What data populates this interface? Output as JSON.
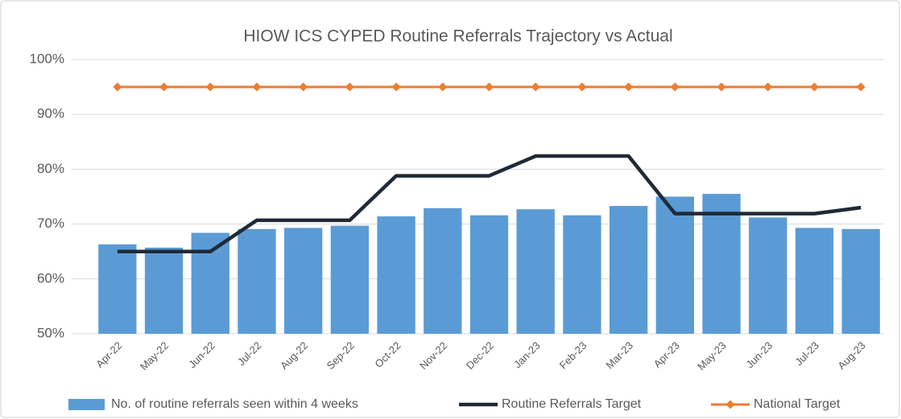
{
  "chart_data": {
    "type": "bar",
    "title": "HIOW ICS CYPED Routine Referrals Trajectory vs Actual",
    "categories": [
      "Apr-22",
      "May-22",
      "Jun-22",
      "Jul-22",
      "Aug-22",
      "Sep-22",
      "Oct-22",
      "Nov-22",
      "Dec-22",
      "Jan-23",
      "Feb-23",
      "Mar-23",
      "Apr-23",
      "May-23",
      "Jun-23",
      "Jul-23",
      "Aug-23"
    ],
    "series": [
      {
        "name": "No. of routine referrals seen within 4 weeks",
        "type": "bar",
        "color": "#5b9bd5",
        "values": [
          66.3,
          65.7,
          68.4,
          69.1,
          69.3,
          69.7,
          71.4,
          72.9,
          71.6,
          72.7,
          71.6,
          73.3,
          75.0,
          75.5,
          71.2,
          69.3,
          69.1
        ]
      },
      {
        "name": "Routine Referrals Target",
        "type": "line",
        "color": "#1f2a36",
        "values": [
          65,
          65,
          65,
          70.7,
          70.7,
          70.7,
          78.8,
          78.8,
          78.8,
          82.4,
          82.4,
          82.4,
          71.9,
          71.9,
          71.9,
          71.9,
          73.0
        ]
      },
      {
        "name": "National Target",
        "type": "line",
        "marker": "diamond",
        "color": "#ed7d31",
        "values": [
          95,
          95,
          95,
          95,
          95,
          95,
          95,
          95,
          95,
          95,
          95,
          95,
          95,
          95,
          95,
          95,
          95
        ]
      }
    ],
    "ylim": [
      50,
      100
    ],
    "yticks": [
      {
        "value": 50,
        "label": "50%"
      },
      {
        "value": 60,
        "label": "60%"
      },
      {
        "value": 70,
        "label": "70%"
      },
      {
        "value": 80,
        "label": "80%"
      },
      {
        "value": 90,
        "label": "90%"
      },
      {
        "value": 100,
        "label": "100%"
      }
    ],
    "grid": true,
    "legend": "bottom"
  }
}
